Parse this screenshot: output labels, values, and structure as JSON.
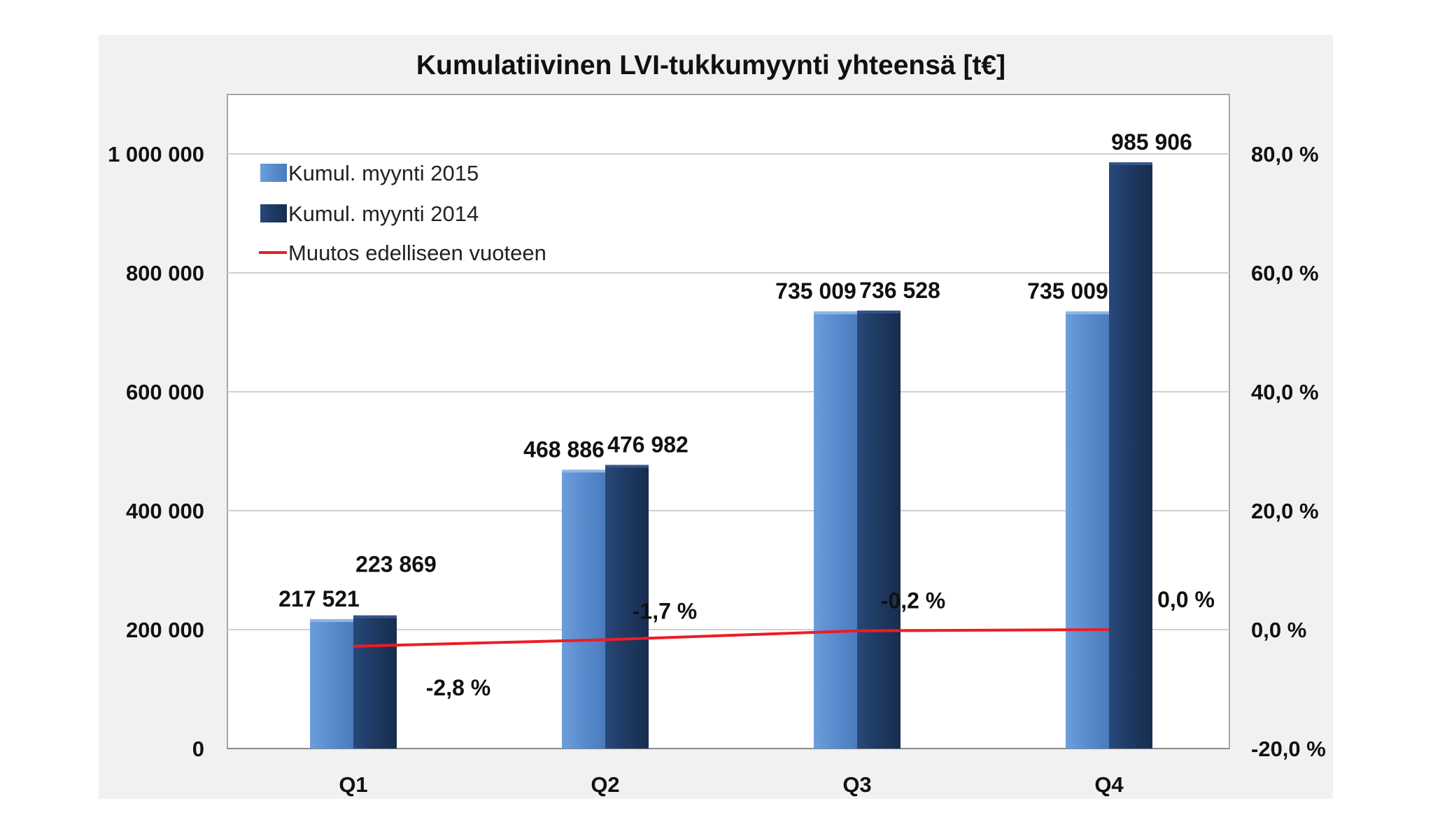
{
  "chart_data": {
    "type": "bar",
    "title": "Kumulatiivinen LVI-tukkumyynti yhteensä [t€]",
    "categories": [
      "Q1",
      "Q2",
      "Q3",
      "Q4"
    ],
    "series": [
      {
        "name": "Kumul. myynti 2015",
        "type": "bar",
        "axis": "left",
        "color": "#5b8fd0",
        "values": [
          217521,
          468886,
          735009,
          735009
        ],
        "labels": [
          "217 521",
          "468 886",
          "735 009",
          "735 009"
        ]
      },
      {
        "name": "Kumul. myynti 2014",
        "type": "bar",
        "axis": "left",
        "color": "#1f3a63",
        "values": [
          223869,
          476982,
          736528,
          985906
        ],
        "labels": [
          "223 869",
          "476 982",
          "736 528",
          "985 906"
        ]
      },
      {
        "name": "Muutos edelliseen vuoteen",
        "type": "line",
        "axis": "right",
        "color": "#ee1c25",
        "values": [
          -2.8,
          -1.7,
          -0.2,
          0.0
        ],
        "labels": [
          "-2,8 %",
          "-1,7 %",
          "-0,2 %",
          "0,0 %"
        ]
      }
    ],
    "y_left": {
      "min": 0,
      "max": 1100000,
      "ticks": [
        0,
        200000,
        400000,
        600000,
        800000,
        1000000
      ],
      "tick_labels": [
        "0",
        "200 000",
        "400 000",
        "600 000",
        "800 000",
        "1 000 000"
      ]
    },
    "y_right": {
      "min": -20,
      "max": 80,
      "ticks": [
        -20,
        0,
        20,
        40,
        60,
        80
      ],
      "tick_labels": [
        "-20,0 %",
        "0,0 %",
        "20,0 %",
        "40,0 %",
        "60,0 %",
        "80,0 %"
      ]
    },
    "grid": true,
    "legend": "top-left"
  }
}
